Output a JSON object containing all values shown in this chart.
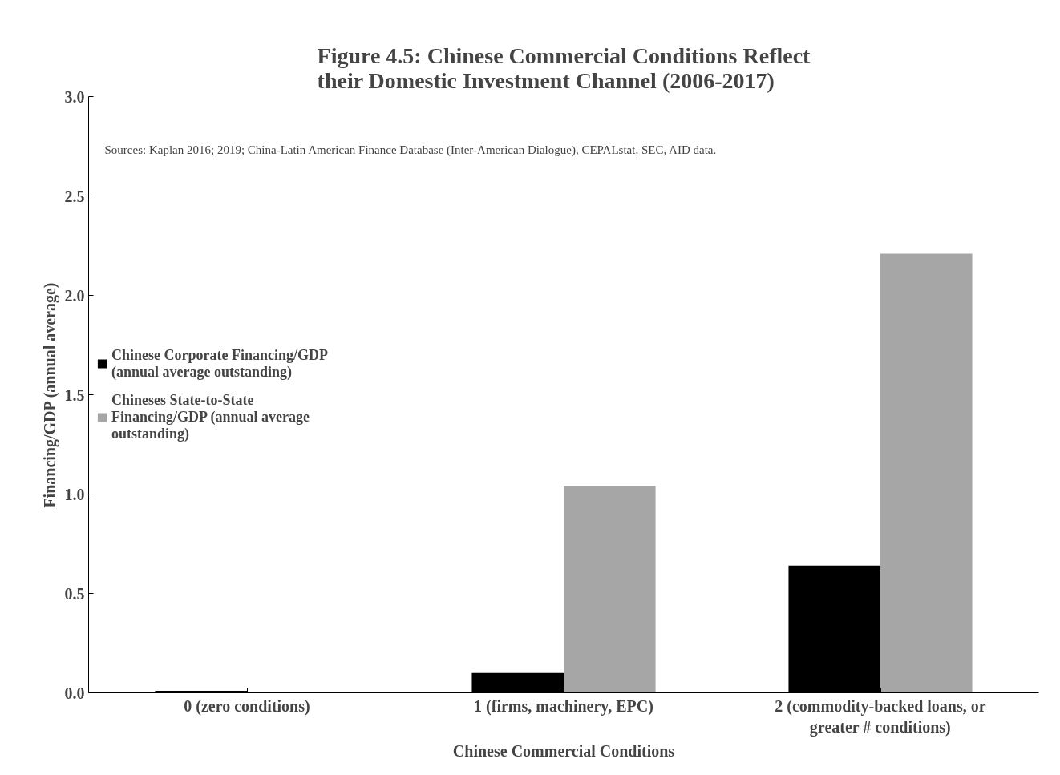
{
  "chart_data": {
    "type": "bar",
    "title": "Figure 4.5: Chinese Commercial Conditions Reflect their Domestic Investment Channel (2006-2017)",
    "annotations": [
      "Sources: Kaplan 2016; 2019; China-Latin American Finance Database (Inter-American Dialogue), CEPALstat, SEC, AID data."
    ],
    "xlabel": "Chinese Commercial Conditions",
    "ylabel": "Financing/GDP (annual average)",
    "categories": [
      "0 (zero conditions)",
      "1 (firms, machinery, EPC)",
      "2 (commodity-backed loans, or greater # conditions)"
    ],
    "series": [
      {
        "name": "Chinese Corporate Financing/GDP (annual average outstanding)",
        "color": "#000000",
        "values": [
          0.01,
          0.1,
          0.64
        ]
      },
      {
        "name": "Chineses State-to-State Financing/GDP (annual average outstanding)",
        "color": "#a6a6a6",
        "values": [
          0,
          1.04,
          2.21
        ]
      }
    ],
    "ylim": [
      0,
      3
    ],
    "yticks": [
      {
        "value": 0,
        "label": "0.0"
      },
      {
        "value": 0.5,
        "label": "0.5"
      },
      {
        "value": 1,
        "label": "1.0"
      },
      {
        "value": 1.5,
        "label": "1.5"
      },
      {
        "value": 2,
        "label": "2.0"
      },
      {
        "value": 2.5,
        "label": "2.5"
      },
      {
        "value": 3,
        "label": "3.0"
      }
    ],
    "grid": false,
    "legend": "left"
  }
}
